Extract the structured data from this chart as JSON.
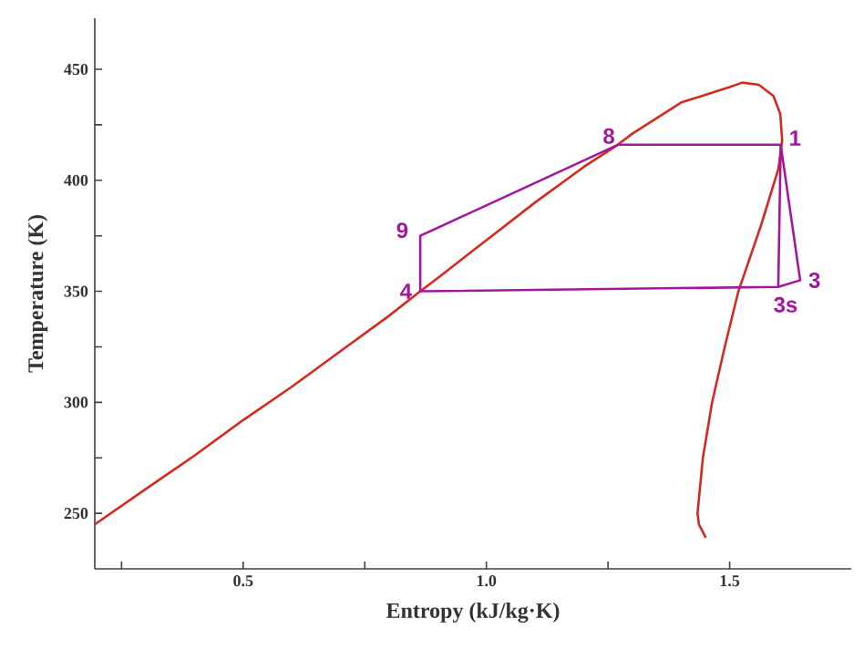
{
  "chart_data": {
    "type": "line",
    "xlabel": "Entropy (kJ/kg·K)",
    "ylabel": "Temperature (K)",
    "xlim": [
      0.195,
      1.75
    ],
    "ylim": [
      225,
      473
    ],
    "xticks": [
      {
        "value": 0.25,
        "label": null
      },
      0.5,
      {
        "value": 0.75,
        "label": null
      },
      {
        "value": 1.0,
        "label": "1.0"
      },
      {
        "value": 1.25,
        "label": null
      },
      1.5
    ],
    "yticks": [
      250,
      {
        "value": 275,
        "label": null
      },
      300,
      {
        "value": 325,
        "label": null
      },
      350,
      {
        "value": 375,
        "label": null
      },
      400,
      {
        "value": 425,
        "label": null
      },
      450
    ],
    "grid": false,
    "marker": "none",
    "line_style": "solid",
    "series": [
      {
        "color": "#d42a1e",
        "x": [
          0.195,
          0.3,
          0.4,
          0.5,
          0.6,
          0.7,
          0.8,
          0.864,
          0.9,
          1.0,
          1.1,
          1.2,
          1.27,
          1.3,
          1.4,
          1.5,
          1.526,
          1.56,
          1.59,
          1.604,
          1.608,
          1.6,
          1.565,
          1.518,
          1.49,
          1.464,
          1.445,
          1.434,
          1.437,
          1.451
        ],
        "values": [
          245,
          261,
          276,
          292,
          307,
          323,
          339,
          350,
          356,
          373,
          390,
          406,
          416,
          421,
          435,
          442,
          444,
          443,
          438,
          430,
          418,
          405,
          380,
          350,
          325,
          300,
          275,
          250,
          245,
          239
        ]
      },
      {
        "color": "#a3179e",
        "x": [
          1.605,
          1.645,
          1.6,
          1.605,
          1.27,
          0.864,
          0.864,
          1.6
        ],
        "values": [
          416,
          355,
          352,
          416,
          416,
          375,
          350,
          352
        ]
      }
    ],
    "annotations": [
      {
        "text": "1",
        "x": 1.605,
        "y": 416
      },
      {
        "text": "3",
        "x": 1.645,
        "y": 355
      },
      {
        "text": "3s",
        "x": 1.6,
        "y": 352
      },
      {
        "text": "4",
        "x": 0.864,
        "y": 350
      },
      {
        "text": "8",
        "x": 1.27,
        "y": 416
      },
      {
        "text": "9",
        "x": 0.864,
        "y": 375
      }
    ]
  }
}
